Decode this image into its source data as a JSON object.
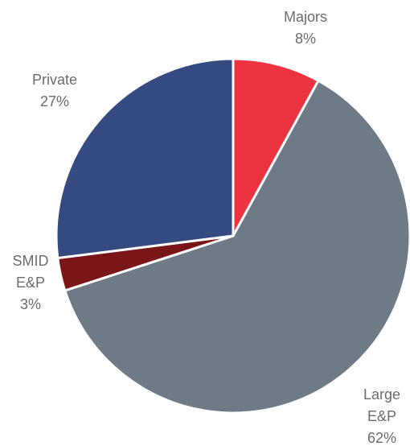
{
  "chart_data": {
    "type": "pie",
    "categories": [
      "Majors",
      "Large E&P",
      "SMID E&P",
      "Private"
    ],
    "values": [
      8,
      62,
      3,
      27
    ],
    "value_labels": [
      "8%",
      "62%",
      "3%",
      "27%"
    ],
    "colors": [
      "#ee3340",
      "#6e7a85",
      "#7a1518",
      "#364a82"
    ]
  }
}
